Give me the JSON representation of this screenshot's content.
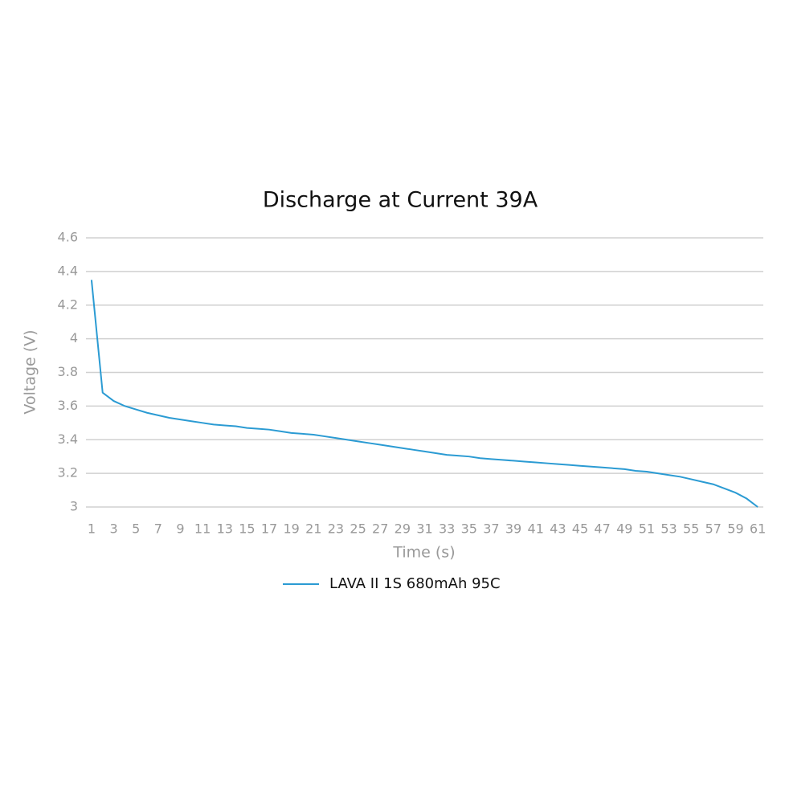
{
  "chart_data": {
    "type": "line",
    "title": "Discharge at Current 39A",
    "x_label": "Time (s)",
    "y_label": "Voltage (V)",
    "categories": [
      1,
      null,
      3,
      null,
      5,
      null,
      7,
      null,
      9,
      null,
      11,
      null,
      13,
      null,
      15,
      null,
      17,
      null,
      19,
      null,
      21,
      null,
      23,
      null,
      25,
      null,
      27,
      null,
      29,
      null,
      31,
      null,
      33,
      null,
      35,
      null,
      37,
      null,
      39,
      null,
      41,
      null,
      43,
      null,
      45,
      null,
      47,
      null,
      49,
      null,
      51,
      null,
      53,
      null,
      55,
      null,
      57,
      null,
      59,
      null,
      61
    ],
    "series": [
      {
        "name": "LAVA II 1S 680mAh 95C",
        "color": "#2b9bd3",
        "values": [
          4.35,
          3.68,
          3.63,
          3.6,
          3.58,
          3.56,
          3.545,
          3.53,
          3.52,
          3.51,
          3.5,
          3.49,
          3.485,
          3.48,
          3.47,
          3.465,
          3.46,
          3.45,
          3.44,
          3.435,
          3.43,
          3.42,
          3.41,
          3.4,
          3.39,
          3.38,
          3.37,
          3.36,
          3.35,
          3.34,
          3.33,
          3.32,
          3.31,
          3.305,
          3.3,
          3.29,
          3.285,
          3.28,
          3.275,
          3.27,
          3.265,
          3.26,
          3.255,
          3.25,
          3.245,
          3.24,
          3.235,
          3.23,
          3.225,
          3.215,
          3.21,
          3.2,
          3.19,
          3.18,
          3.165,
          3.15,
          3.135,
          3.11,
          3.085,
          3.05,
          3.0
        ]
      }
    ],
    "ylim": [
      3,
      4.6
    ],
    "yticks": [
      3,
      3.2,
      3.4,
      3.6,
      3.8,
      4,
      4.2,
      4.4,
      4.6
    ],
    "grid": true,
    "legend": "bottom"
  }
}
